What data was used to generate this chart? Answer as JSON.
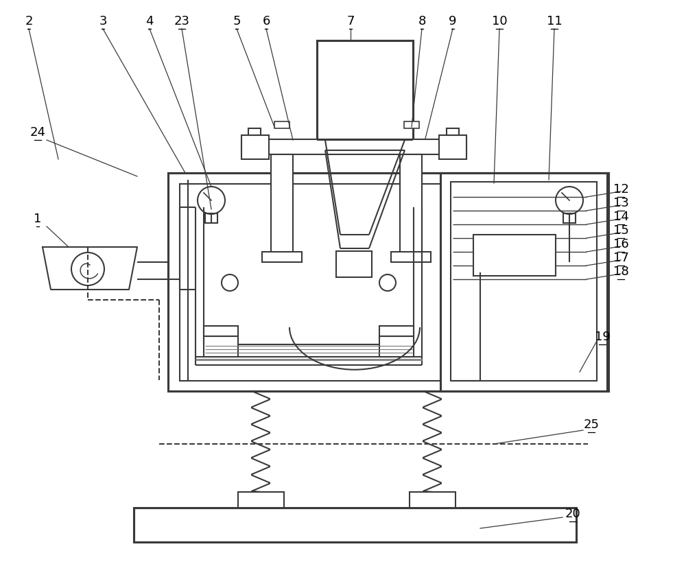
{
  "bg_color": "#ffffff",
  "lc": "#3a3a3a",
  "lw": 1.5,
  "fs": 13
}
